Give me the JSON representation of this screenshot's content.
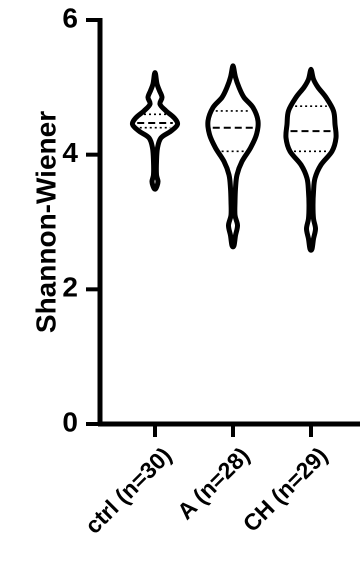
{
  "chart_data": {
    "type": "violin",
    "title": "",
    "xlabel": "",
    "ylabel": "Shannon-Wiener",
    "ylim": [
      0,
      6
    ],
    "y_ticks": [
      "0",
      "2",
      "4",
      "6"
    ],
    "grid": false,
    "categories": [
      "ctrl (n=30)",
      "A (n=28)",
      "CH (n=29)"
    ],
    "series": [
      {
        "category": "ctrl (n=30)",
        "n": 30,
        "min": 3.5,
        "max": 5.2,
        "q1": 4.4,
        "median": 4.47,
        "q3": 4.6,
        "profile": [
          [
            3.5,
            0.02
          ],
          [
            3.6,
            0.06
          ],
          [
            3.7,
            0.03
          ],
          [
            3.9,
            0.03
          ],
          [
            4.1,
            0.05
          ],
          [
            4.25,
            0.12
          ],
          [
            4.35,
            0.32
          ],
          [
            4.45,
            0.45
          ],
          [
            4.55,
            0.38
          ],
          [
            4.65,
            0.22
          ],
          [
            4.75,
            0.1
          ],
          [
            4.85,
            0.14
          ],
          [
            4.95,
            0.09
          ],
          [
            5.05,
            0.04
          ],
          [
            5.2,
            0.01
          ]
        ]
      },
      {
        "category": "A (n=28)",
        "n": 28,
        "min": 2.65,
        "max": 5.3,
        "q1": 4.05,
        "median": 4.4,
        "q3": 4.65,
        "profile": [
          [
            2.65,
            0.02
          ],
          [
            2.8,
            0.05
          ],
          [
            2.95,
            0.09
          ],
          [
            3.1,
            0.04
          ],
          [
            3.3,
            0.04
          ],
          [
            3.5,
            0.05
          ],
          [
            3.7,
            0.08
          ],
          [
            3.9,
            0.18
          ],
          [
            4.1,
            0.35
          ],
          [
            4.3,
            0.47
          ],
          [
            4.5,
            0.5
          ],
          [
            4.7,
            0.4
          ],
          [
            4.85,
            0.22
          ],
          [
            5.0,
            0.12
          ],
          [
            5.15,
            0.05
          ],
          [
            5.3,
            0.01
          ]
        ]
      },
      {
        "category": "CH (n=29)",
        "n": 29,
        "min": 2.6,
        "max": 5.25,
        "q1": 4.05,
        "median": 4.35,
        "q3": 4.72,
        "profile": [
          [
            2.6,
            0.02
          ],
          [
            2.75,
            0.05
          ],
          [
            2.9,
            0.09
          ],
          [
            3.05,
            0.05
          ],
          [
            3.25,
            0.04
          ],
          [
            3.45,
            0.05
          ],
          [
            3.65,
            0.08
          ],
          [
            3.85,
            0.2
          ],
          [
            4.05,
            0.42
          ],
          [
            4.25,
            0.5
          ],
          [
            4.45,
            0.48
          ],
          [
            4.65,
            0.45
          ],
          [
            4.85,
            0.3
          ],
          [
            5.0,
            0.14
          ],
          [
            5.12,
            0.05
          ],
          [
            5.25,
            0.01
          ]
        ]
      }
    ]
  }
}
